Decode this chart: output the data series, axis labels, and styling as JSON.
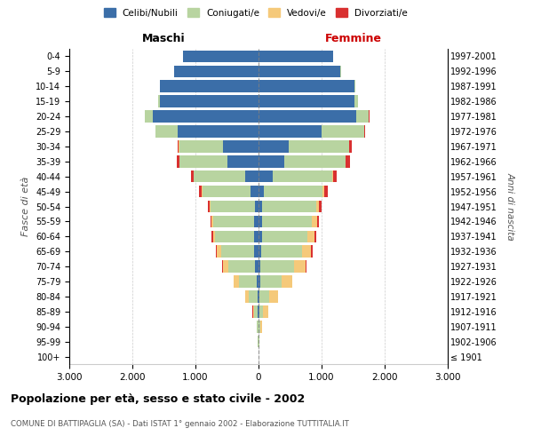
{
  "age_groups": [
    "100+",
    "95-99",
    "90-94",
    "85-89",
    "80-84",
    "75-79",
    "70-74",
    "65-69",
    "60-64",
    "55-59",
    "50-54",
    "45-49",
    "40-44",
    "35-39",
    "30-34",
    "25-29",
    "20-24",
    "15-19",
    "10-14",
    "5-9",
    "0-4"
  ],
  "birth_years": [
    "≤ 1901",
    "1902-1906",
    "1907-1911",
    "1912-1916",
    "1917-1921",
    "1922-1926",
    "1927-1931",
    "1932-1936",
    "1937-1941",
    "1942-1946",
    "1947-1951",
    "1952-1956",
    "1957-1961",
    "1962-1966",
    "1967-1971",
    "1972-1976",
    "1977-1981",
    "1982-1986",
    "1987-1991",
    "1992-1996",
    "1997-2001"
  ],
  "males": {
    "celibe": [
      2,
      3,
      5,
      10,
      20,
      30,
      55,
      65,
      65,
      65,
      60,
      130,
      210,
      490,
      560,
      1280,
      1680,
      1560,
      1560,
      1340,
      1200
    ],
    "coniugato": [
      2,
      5,
      20,
      55,
      130,
      280,
      430,
      530,
      620,
      650,
      700,
      760,
      820,
      760,
      700,
      350,
      120,
      30,
      10,
      5,
      2
    ],
    "vedovo": [
      0,
      2,
      5,
      25,
      55,
      80,
      80,
      65,
      40,
      25,
      15,
      10,
      5,
      5,
      3,
      2,
      0,
      0,
      0,
      0,
      0
    ],
    "divorziato": [
      0,
      0,
      0,
      2,
      3,
      5,
      10,
      15,
      22,
      27,
      32,
      38,
      42,
      36,
      20,
      8,
      5,
      2,
      0,
      0,
      0
    ]
  },
  "females": {
    "nubile": [
      2,
      3,
      5,
      10,
      20,
      25,
      35,
      48,
      52,
      52,
      52,
      82,
      225,
      405,
      485,
      1000,
      1550,
      1520,
      1520,
      1300,
      1180
    ],
    "coniugata": [
      2,
      5,
      20,
      60,
      150,
      340,
      530,
      640,
      720,
      790,
      860,
      930,
      940,
      970,
      950,
      680,
      200,
      55,
      15,
      5,
      2
    ],
    "vedova": [
      2,
      5,
      30,
      80,
      140,
      165,
      175,
      145,
      112,
      82,
      47,
      32,
      22,
      12,
      5,
      3,
      2,
      0,
      0,
      0,
      0
    ],
    "divorziata": [
      0,
      0,
      0,
      2,
      3,
      8,
      16,
      22,
      27,
      32,
      42,
      52,
      58,
      58,
      32,
      12,
      5,
      2,
      0,
      0,
      0
    ]
  },
  "colors": {
    "celibe_nubile": "#3b6ea8",
    "coniugato": "#b8d4a0",
    "vedovo": "#f5c97a",
    "divorziato": "#d93030"
  },
  "xlim": 3000,
  "xlabel_maschi": "Maschi",
  "xlabel_femmine": "Femmine",
  "ylabel_left": "Fasce di età",
  "ylabel_right": "Anni di nascita",
  "title": "Popolazione per età, sesso e stato civile - 2002",
  "subtitle": "COMUNE DI BATTIPAGLIA (SA) - Dati ISTAT 1° gennaio 2002 - Elaborazione TUTTITALIA.IT",
  "legend_labels": [
    "Celibi/Nubili",
    "Coniugati/e",
    "Vedovi/e",
    "Divorziati/e"
  ],
  "background_color": "#ffffff",
  "bar_height": 0.8
}
